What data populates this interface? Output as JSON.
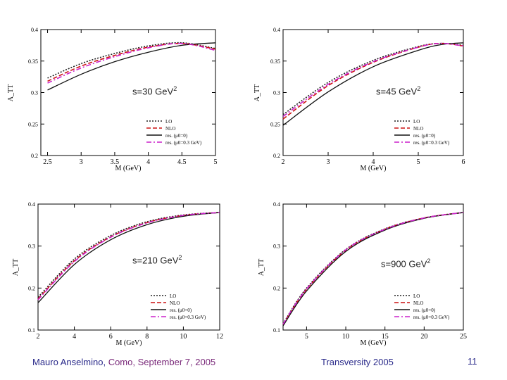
{
  "footer": {
    "author": "Mauro Anselmino",
    "sep": ", ",
    "where": "Como, September 7, 2005",
    "conference": "Transversity 2005",
    "page": "11"
  },
  "panels": [
    {
      "energy_text": "s=30 GeV",
      "energy_sup": "2"
    },
    {
      "energy_text": "s=45 GeV",
      "energy_sup": "2"
    },
    {
      "energy_text": "s=210 GeV",
      "energy_sup": "2"
    },
    {
      "energy_text": "s=900 GeV",
      "energy_sup": "2"
    }
  ],
  "colors": {
    "lo": "#222222",
    "nlo": "#cc1111",
    "res0": "#111111",
    "res03": "#cc22cc"
  },
  "chart_data": [
    {
      "type": "line",
      "title": "s=30 GeV2",
      "xlabel": "M (GeV)",
      "ylabel": "A_TT",
      "xlim": [
        2.4,
        5.0
      ],
      "ylim": [
        0.2,
        0.4
      ],
      "xticks": [
        2.5,
        3,
        3.5,
        4,
        4.5,
        5
      ],
      "yticks": [
        0.2,
        0.25,
        0.3,
        0.35,
        0.4
      ],
      "yticklabels": [
        "0.2",
        "0.25",
        "0.3",
        "0.35",
        "0.4"
      ],
      "legend_position": "bottom-right",
      "series": [
        {
          "name": "LO",
          "style": "dotted",
          "x": [
            2.5,
            3,
            3.5,
            4,
            4.5,
            5
          ],
          "y": [
            0.323,
            0.346,
            0.362,
            0.374,
            0.379,
            0.37
          ]
        },
        {
          "name": "NLO",
          "style": "dashed",
          "x": [
            2.5,
            3,
            3.5,
            4,
            4.5,
            5
          ],
          "y": [
            0.318,
            0.342,
            0.359,
            0.372,
            0.378,
            0.369
          ]
        },
        {
          "name": "res. (μ0=0)",
          "style": "solid",
          "x": [
            2.5,
            3,
            3.5,
            4,
            4.5,
            5
          ],
          "y": [
            0.304,
            0.329,
            0.349,
            0.364,
            0.375,
            0.379
          ]
        },
        {
          "name": "res. (μ0=0.3 GeV)",
          "style": "dashdot",
          "x": [
            2.5,
            3,
            3.5,
            4,
            4.5,
            5
          ],
          "y": [
            0.315,
            0.339,
            0.357,
            0.371,
            0.378,
            0.367
          ]
        }
      ]
    },
    {
      "type": "line",
      "title": "s=45 GeV2",
      "xlabel": "M (GeV)",
      "ylabel": "A_TT",
      "xlim": [
        2,
        6
      ],
      "ylim": [
        0.2,
        0.4
      ],
      "xticks": [
        2,
        3,
        4,
        5,
        6
      ],
      "yticks": [
        0.2,
        0.25,
        0.3,
        0.35,
        0.4
      ],
      "yticklabels": [
        "0.2",
        "0.25",
        "0.3",
        "0.35",
        "0.4"
      ],
      "legend_position": "bottom-right",
      "series": [
        {
          "name": "LO",
          "style": "dotted",
          "x": [
            2,
            3,
            4,
            5,
            5.5,
            6
          ],
          "y": [
            0.265,
            0.316,
            0.351,
            0.373,
            0.378,
            0.375
          ]
        },
        {
          "name": "NLO",
          "style": "dashed",
          "x": [
            2,
            3,
            4,
            5,
            5.5,
            6
          ],
          "y": [
            0.258,
            0.311,
            0.348,
            0.372,
            0.378,
            0.374
          ]
        },
        {
          "name": "res. (μ0=0)",
          "style": "solid",
          "x": [
            2,
            3,
            4,
            5,
            5.5,
            6
          ],
          "y": [
            0.248,
            0.301,
            0.341,
            0.367,
            0.376,
            0.379
          ]
        },
        {
          "name": "res. (μ0=0.3 GeV)",
          "style": "dashdot",
          "x": [
            2,
            3,
            4,
            5,
            5.5,
            6
          ],
          "y": [
            0.262,
            0.313,
            0.349,
            0.372,
            0.378,
            0.374
          ]
        }
      ]
    },
    {
      "type": "line",
      "title": "s=210 GeV2",
      "xlabel": "M (GeV)",
      "ylabel": "A_TT",
      "xlim": [
        2,
        12
      ],
      "ylim": [
        0.1,
        0.4
      ],
      "xticks": [
        2,
        4,
        6,
        8,
        10,
        12
      ],
      "yticks": [
        0.1,
        0.2,
        0.3,
        0.4
      ],
      "yticklabels": [
        "0.1",
        "0.2",
        "0.3",
        "0.4"
      ],
      "legend_position": "bottom-right",
      "series": [
        {
          "name": "LO",
          "style": "dotted",
          "x": [
            2,
            4,
            6,
            8,
            10,
            12
          ],
          "y": [
            0.178,
            0.269,
            0.325,
            0.358,
            0.374,
            0.38
          ]
        },
        {
          "name": "NLO",
          "style": "dashed",
          "x": [
            2,
            4,
            6,
            8,
            10,
            12
          ],
          "y": [
            0.174,
            0.265,
            0.322,
            0.356,
            0.373,
            0.38
          ]
        },
        {
          "name": "res. (μ0=0)",
          "style": "solid",
          "x": [
            2,
            4,
            6,
            8,
            10,
            12
          ],
          "y": [
            0.165,
            0.256,
            0.315,
            0.351,
            0.371,
            0.38
          ]
        },
        {
          "name": "res. (μ0=0.3 GeV)",
          "style": "dashdot",
          "x": [
            2,
            4,
            6,
            8,
            10,
            12
          ],
          "y": [
            0.172,
            0.263,
            0.321,
            0.355,
            0.373,
            0.38
          ]
        }
      ]
    },
    {
      "type": "line",
      "title": "s=900 GeV2",
      "xlabel": "M (GeV)",
      "ylabel": "A_TT",
      "xlim": [
        2,
        25
      ],
      "ylim": [
        0.1,
        0.4
      ],
      "xticks": [
        5,
        10,
        15,
        20,
        25
      ],
      "yticks": [
        0.1,
        0.2,
        0.3,
        0.4
      ],
      "yticklabels": [
        "0.1",
        "0.2",
        "0.3",
        "0.4"
      ],
      "legend_position": "bottom-right",
      "series": [
        {
          "name": "LO",
          "style": "dotted",
          "x": [
            2,
            5,
            10,
            15,
            20,
            25
          ],
          "y": [
            0.115,
            0.2,
            0.292,
            0.341,
            0.367,
            0.38
          ]
        },
        {
          "name": "NLO",
          "style": "dashed",
          "x": [
            2,
            5,
            10,
            15,
            20,
            25
          ],
          "y": [
            0.113,
            0.197,
            0.29,
            0.34,
            0.367,
            0.38
          ]
        },
        {
          "name": "res. (μ0=0)",
          "style": "solid",
          "x": [
            2,
            5,
            10,
            15,
            20,
            25
          ],
          "y": [
            0.11,
            0.193,
            0.287,
            0.338,
            0.366,
            0.38
          ]
        },
        {
          "name": "res. (μ0=0.3 GeV)",
          "style": "dashdot",
          "x": [
            2,
            5,
            10,
            15,
            20,
            25
          ],
          "y": [
            0.114,
            0.198,
            0.291,
            0.34,
            0.367,
            0.38
          ]
        }
      ]
    }
  ]
}
